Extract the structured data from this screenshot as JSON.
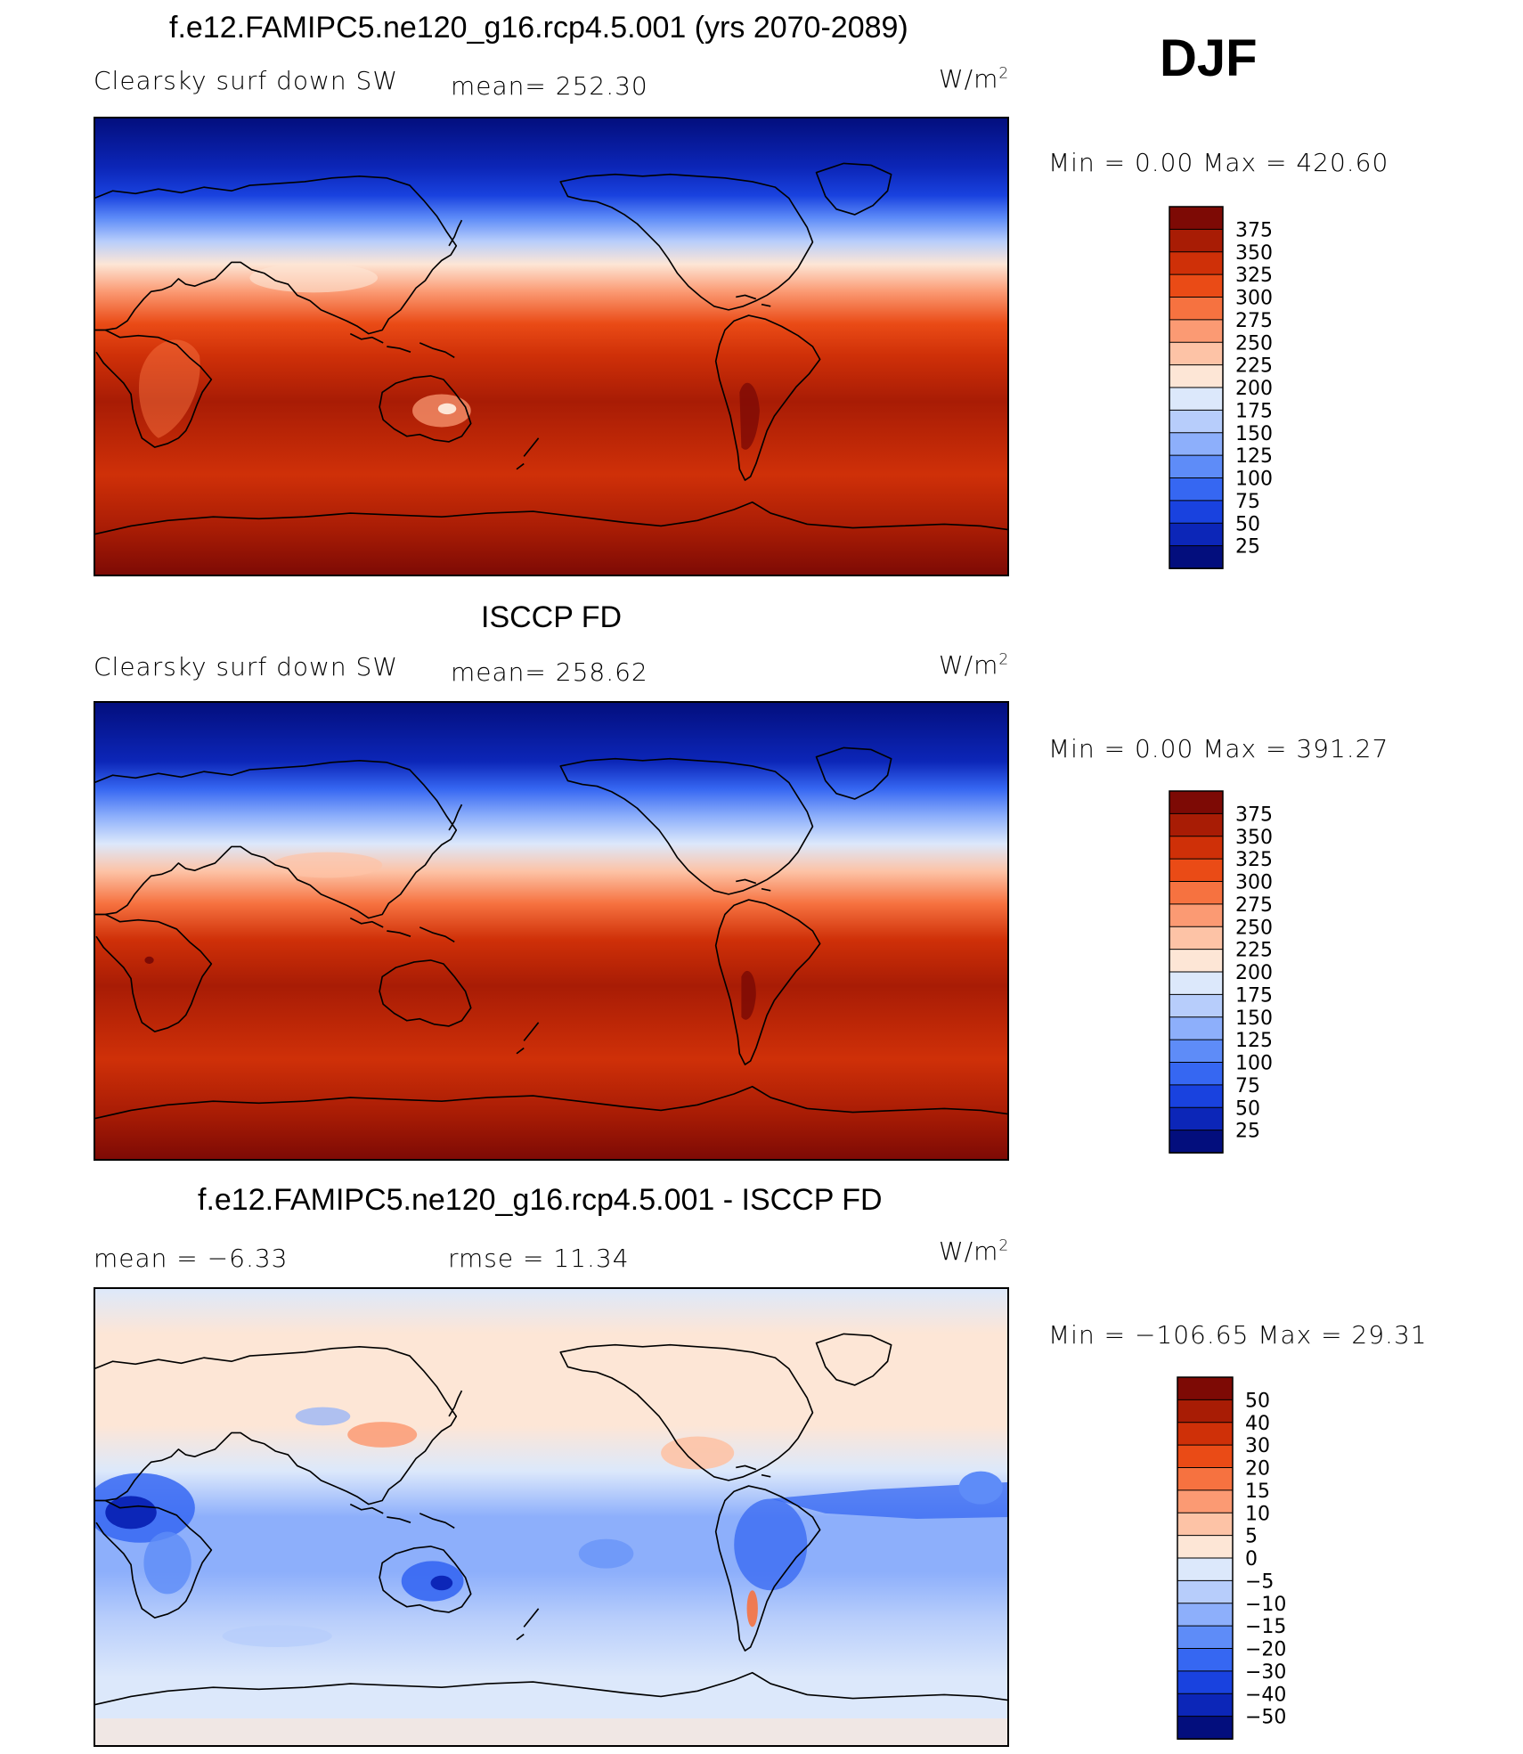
{
  "header": {
    "title": "f.e12.FAMIPC5.ne120_g16.rcp4.5.001 (yrs 2070-2089)",
    "season": "DJF"
  },
  "panels": [
    {
      "title": "",
      "field": "Clearsky surf down SW",
      "stat": "mean= 252.30",
      "units": "W/m",
      "units_sup": "2",
      "minmax": "Min =     0.00 Max = 420.60",
      "colorbar": {
        "labels": [
          "375",
          "350",
          "325",
          "300",
          "275",
          "250",
          "225",
          "200",
          "175",
          "150",
          "125",
          "100",
          "75",
          "50",
          "25"
        ],
        "colors": [
          "#7d0a05",
          "#a81c05",
          "#cf3008",
          "#ea4b16",
          "#f67240",
          "#fb9a73",
          "#fdc3a6",
          "#fde6d6",
          "#dce8fb",
          "#b7cdfb",
          "#8daffb",
          "#5e8cf8",
          "#3667f2",
          "#1942df",
          "#0c26b8",
          "#030e7d"
        ]
      }
    },
    {
      "title": "ISCCP FD",
      "field": "Clearsky surf down SW",
      "stat": "mean= 258.62",
      "units": "W/m",
      "units_sup": "2",
      "minmax": "Min =     0.00 Max = 391.27",
      "colorbar": {
        "labels": [
          "375",
          "350",
          "325",
          "300",
          "275",
          "250",
          "225",
          "200",
          "175",
          "150",
          "125",
          "100",
          "75",
          "50",
          "25"
        ],
        "colors": [
          "#7d0a05",
          "#a81c05",
          "#cf3008",
          "#ea4b16",
          "#f67240",
          "#fb9a73",
          "#fdc3a6",
          "#fde6d6",
          "#dce8fb",
          "#b7cdfb",
          "#8daffb",
          "#5e8cf8",
          "#3667f2",
          "#1942df",
          "#0c26b8",
          "#030e7d"
        ]
      }
    },
    {
      "title": "f.e12.FAMIPC5.ne120_g16.rcp4.5.001 - ISCCP FD",
      "field": "mean =    −6.33",
      "stat": "rmse =    11.34",
      "units": "W/m",
      "units_sup": "2",
      "minmax": "Min = −106.65 Max =   29.31",
      "colorbar": {
        "labels": [
          "50",
          "40",
          "30",
          "20",
          "15",
          "10",
          "5",
          "0",
          "−5",
          "−10",
          "−15",
          "−20",
          "−30",
          "−40",
          "−50"
        ],
        "colors": [
          "#7d0a05",
          "#a81c05",
          "#cf3008",
          "#ea4b16",
          "#f67240",
          "#fb9a73",
          "#fdc3a6",
          "#fde6d6",
          "#dce8fb",
          "#b7cdfb",
          "#8daffb",
          "#5e8cf8",
          "#3667f2",
          "#1942df",
          "#0c26b8",
          "#030e7d"
        ]
      }
    }
  ]
}
